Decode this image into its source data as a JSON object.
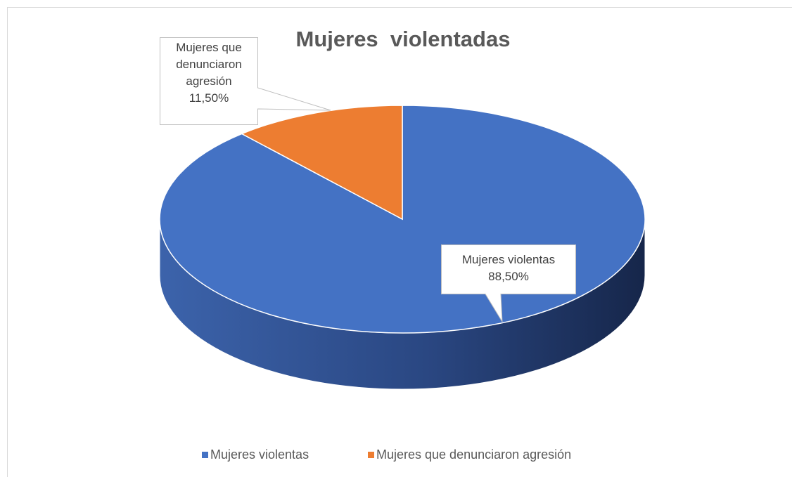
{
  "chart_data": {
    "type": "pie",
    "title": "Mujeres  violentadas",
    "categories": [
      "Mujeres violentas",
      "Mujeres que denunciaron agresión"
    ],
    "values": [
      88.5,
      11.5
    ],
    "value_labels": [
      "88,50%",
      "11,50%"
    ],
    "colors": [
      "#4472c4",
      "#ed7d31"
    ],
    "legend": "bottom"
  }
}
